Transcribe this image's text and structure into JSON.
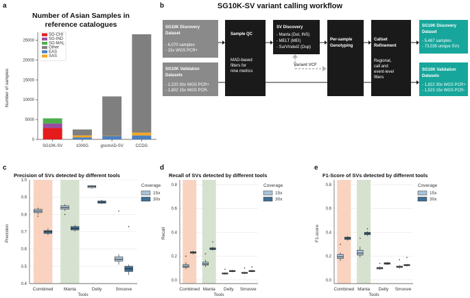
{
  "panels": {
    "a": {
      "label": "a"
    },
    "b": {
      "label": "b"
    },
    "c": {
      "label": "c"
    },
    "d": {
      "label": "d"
    },
    "e": {
      "label": "e"
    }
  },
  "colors": {
    "SG-CHI": "#e41a1c",
    "SG-IND": "#984ea3",
    "SG-MAL": "#4daf4a",
    "Other": "#7f7f7f",
    "EAS": "#4a7fc1",
    "SAS": "#f5a623",
    "wf_black": "#1a1a1a",
    "wf_grey": "#8a8a8a",
    "wf_teal": "#17a69b",
    "cov15": "#a9c4d9",
    "cov30": "#3f6f94",
    "shade_combined": "#f9d3c0",
    "shade_manta": "#d6e2cf"
  },
  "chart_data": [
    {
      "id": "a",
      "type": "bar",
      "stacked": true,
      "title_lines": [
        "Number of Asian Samples in",
        "reference catalogues"
      ],
      "xlabel": "",
      "ylabel": "Number of samples",
      "ylim": [
        0,
        27000
      ],
      "yticks": [
        0,
        5000,
        10000,
        15000,
        20000,
        25000
      ],
      "categories": [
        "SG10K-SV",
        "1000G",
        "gnomAD-SV",
        "CCDG"
      ],
      "series": [
        {
          "name": "SG-CHI",
          "values": [
            2850,
            0,
            0,
            0
          ]
        },
        {
          "name": "SG-IND",
          "values": [
            1150,
            0,
            0,
            0
          ]
        },
        {
          "name": "SG-MAL",
          "values": [
            1300,
            0,
            0,
            0
          ]
        },
        {
          "name": "EAS",
          "values": [
            0,
            500,
            900,
            1000
          ]
        },
        {
          "name": "SAS",
          "values": [
            0,
            500,
            30,
            700
          ]
        },
        {
          "name": "Other",
          "values": [
            0,
            1500,
            9900,
            24800
          ]
        }
      ],
      "legend": [
        "SG-CHI",
        "SG-IND",
        "SG-MAL",
        "Other",
        "EAS",
        "SAS"
      ],
      "legend_position": "top-left"
    },
    {
      "id": "c",
      "type": "box",
      "title": "Precision of SVs detected by different tools",
      "xlabel": "Tools",
      "ylabel": "Precision",
      "ylim": [
        0.4,
        1.0
      ],
      "yticks": [
        0.4,
        0.5,
        0.6,
        0.7,
        0.8,
        0.9,
        1.0
      ],
      "categories": [
        "Combined",
        "Manta",
        "Delly",
        "Smoove"
      ],
      "legend_title": "Coverage",
      "legend": [
        "15x",
        "30x"
      ],
      "legend_position": "right",
      "shaded": [
        "Combined",
        "Manta"
      ],
      "series": [
        {
          "name": "15x",
          "boxes": [
            {
              "whislo": 0.8,
              "q1": 0.81,
              "med": 0.82,
              "q3": 0.83,
              "whishi": 0.84,
              "fliers": [
                0.79
              ]
            },
            {
              "whislo": 0.82,
              "q1": 0.83,
              "med": 0.84,
              "q3": 0.85,
              "whishi": 0.86,
              "fliers": [
                0.8
              ]
            },
            {
              "whislo": 0.95,
              "q1": 0.955,
              "med": 0.962,
              "q3": 0.967,
              "whishi": 0.97,
              "fliers": []
            },
            {
              "whislo": 0.51,
              "q1": 0.53,
              "med": 0.54,
              "q3": 0.555,
              "whishi": 0.57,
              "fliers": [
                0.82
              ]
            }
          ]
        },
        {
          "name": "30x",
          "boxes": [
            {
              "whislo": 0.68,
              "q1": 0.69,
              "med": 0.7,
              "q3": 0.707,
              "whishi": 0.72,
              "fliers": []
            },
            {
              "whislo": 0.7,
              "q1": 0.71,
              "med": 0.72,
              "q3": 0.73,
              "whishi": 0.74,
              "fliers": []
            },
            {
              "whislo": 0.86,
              "q1": 0.865,
              "med": 0.872,
              "q3": 0.878,
              "whishi": 0.885,
              "fliers": []
            },
            {
              "whislo": 0.45,
              "q1": 0.47,
              "med": 0.485,
              "q3": 0.5,
              "whishi": 0.51,
              "fliers": [
                0.73
              ]
            }
          ]
        }
      ]
    },
    {
      "id": "d",
      "type": "box",
      "title": "Recall of SVs detected by different tools",
      "xlabel": "Tools",
      "ylabel": "Recall",
      "ylim": [
        -0.03,
        0.84
      ],
      "yticks": [
        0.0,
        0.2,
        0.4,
        0.6,
        0.8
      ],
      "categories": [
        "Combined",
        "Manta",
        "Delly",
        "Smoove"
      ],
      "legend_title": "Coverage",
      "legend": [
        "15x",
        "30x"
      ],
      "legend_position": "right",
      "shaded": [
        "Combined",
        "Manta"
      ],
      "series": [
        {
          "name": "15x",
          "boxes": [
            {
              "whislo": 0.09,
              "q1": 0.105,
              "med": 0.115,
              "q3": 0.13,
              "whishi": 0.15,
              "fliers": [
                0.2
              ]
            },
            {
              "whislo": 0.11,
              "q1": 0.125,
              "med": 0.135,
              "q3": 0.15,
              "whishi": 0.17,
              "fliers": [
                0.22
              ]
            },
            {
              "whislo": 0.045,
              "q1": 0.05,
              "med": 0.055,
              "q3": 0.06,
              "whishi": 0.065,
              "fliers": [
                0.09
              ]
            },
            {
              "whislo": 0.05,
              "q1": 0.055,
              "med": 0.06,
              "q3": 0.065,
              "whishi": 0.07,
              "fliers": [
                0.1
              ]
            }
          ]
        },
        {
          "name": "30x",
          "boxes": [
            {
              "whislo": 0.215,
              "q1": 0.225,
              "med": 0.23,
              "q3": 0.237,
              "whishi": 0.245,
              "fliers": []
            },
            {
              "whislo": 0.245,
              "q1": 0.255,
              "med": 0.262,
              "q3": 0.27,
              "whishi": 0.28,
              "fliers": [
                0.32
              ]
            },
            {
              "whislo": 0.065,
              "q1": 0.07,
              "med": 0.075,
              "q3": 0.08,
              "whishi": 0.085,
              "fliers": []
            },
            {
              "whislo": 0.065,
              "q1": 0.07,
              "med": 0.075,
              "q3": 0.08,
              "whishi": 0.085,
              "fliers": [
                0.11
              ]
            }
          ]
        }
      ]
    },
    {
      "id": "e",
      "type": "box",
      "title": "F1-Score of SVs detected by different tools",
      "xlabel": "Tools",
      "ylabel": "F1-score",
      "ylim": [
        -0.03,
        0.84
      ],
      "yticks": [
        0.0,
        0.2,
        0.4,
        0.6,
        0.8
      ],
      "categories": [
        "Combined",
        "Manta",
        "Delly",
        "Smoove"
      ],
      "legend_title": "Coverage",
      "legend": [
        "15x",
        "30x"
      ],
      "legend_position": "right",
      "shaded": [
        "Combined",
        "Manta"
      ],
      "series": [
        {
          "name": "15x",
          "boxes": [
            {
              "whislo": 0.16,
              "q1": 0.18,
              "med": 0.195,
              "q3": 0.215,
              "whishi": 0.23,
              "fliers": [
                0.3
              ]
            },
            {
              "whislo": 0.19,
              "q1": 0.21,
              "med": 0.225,
              "q3": 0.25,
              "whishi": 0.28,
              "fliers": [
                0.35
              ]
            },
            {
              "whislo": 0.085,
              "q1": 0.092,
              "med": 0.1,
              "q3": 0.107,
              "whishi": 0.115,
              "fliers": [
                0.14
              ]
            },
            {
              "whislo": 0.095,
              "q1": 0.105,
              "med": 0.11,
              "q3": 0.118,
              "whishi": 0.125,
              "fliers": [
                0.17
              ]
            }
          ]
        },
        {
          "name": "30x",
          "boxes": [
            {
              "whislo": 0.33,
              "q1": 0.34,
              "med": 0.35,
              "q3": 0.36,
              "whishi": 0.37,
              "fliers": []
            },
            {
              "whislo": 0.37,
              "q1": 0.38,
              "med": 0.39,
              "q3": 0.4,
              "whishi": 0.41,
              "fliers": [
                0.43
              ]
            },
            {
              "whislo": 0.125,
              "q1": 0.132,
              "med": 0.14,
              "q3": 0.145,
              "whishi": 0.15,
              "fliers": []
            },
            {
              "whislo": 0.115,
              "q1": 0.12,
              "med": 0.125,
              "q3": 0.13,
              "whishi": 0.135,
              "fliers": [
                0.19
              ]
            }
          ]
        }
      ]
    }
  ],
  "workflow": {
    "title": "SG10K-SV variant calling workflow",
    "discovery_dataset": {
      "title_lines": [
        "SG10K Discovery",
        "Dataset"
      ],
      "details": [
        "- 6,070 samples",
        "- 15x WGS PCR+"
      ]
    },
    "validation_dataset": {
      "title_lines": [
        "SG10K Validation",
        "Datasets"
      ],
      "details": [
        "- 2,220 30x WGS PCR+",
        "- 1,802 15x WGS PCR-"
      ]
    },
    "sample_qc": {
      "title": "Sample QC",
      "details": [
        "MAD-based",
        "filters for",
        "nine metrics"
      ]
    },
    "sv_discovery": {
      "title": "SV Discovery",
      "details": [
        "- Manta (Del, INS)",
        "- MELT (MEI)",
        "- SurVIndel2 (Dup)"
      ]
    },
    "variant_vcf": "Variant VCF",
    "genotyping": {
      "title_lines": [
        "Per-sample",
        "Genotyping"
      ]
    },
    "refinement": {
      "title_lines": [
        "Callset",
        "Refinement"
      ],
      "details": [
        "Regional,",
        "call and",
        "event-level",
        "filters"
      ]
    },
    "out_discovery": {
      "title_lines": [
        "SG10K Discovery",
        "Dataset"
      ],
      "details": [
        "- 5,487 samples",
        "- 73,035 unique SVs"
      ]
    },
    "out_validation": {
      "title_lines": [
        "SG10K Validation",
        "Datasets"
      ],
      "details": [
        "- 1,822 30x WGS PCR+",
        "- 1,523 15x WGS PCR-"
      ]
    }
  }
}
